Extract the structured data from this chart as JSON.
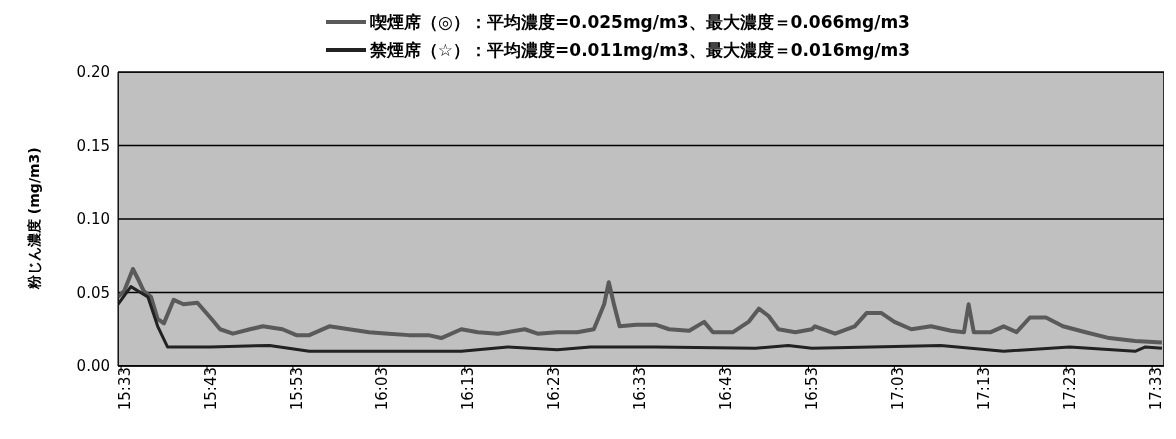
{
  "chart_data": {
    "type": "line",
    "ylabel": "粉じん濃度 (mg/m3)",
    "legend": "top",
    "grid": "y",
    "marker": "none",
    "line_style": "solid",
    "xlim": [
      15.544,
      17.573
    ],
    "ylim": [
      0,
      0.2
    ],
    "xticks": [
      {
        "value": 15.55,
        "label": "15:33"
      },
      {
        "value": 15.7167,
        "label": "15:43"
      },
      {
        "value": 15.8833,
        "label": "15:53"
      },
      {
        "value": 16.05,
        "label": "16:03"
      },
      {
        "value": 16.2167,
        "label": "16:13"
      },
      {
        "value": 16.3833,
        "label": "16:23"
      },
      {
        "value": 16.55,
        "label": "16:33"
      },
      {
        "value": 16.7167,
        "label": "16:43"
      },
      {
        "value": 16.8833,
        "label": "16:53"
      },
      {
        "value": 17.05,
        "label": "17:03"
      },
      {
        "value": 17.2167,
        "label": "17:13"
      },
      {
        "value": 17.3833,
        "label": "17:23"
      },
      {
        "value": 17.55,
        "label": "17:33"
      }
    ],
    "yticks": [
      {
        "value": 0,
        "label": "0.00"
      },
      {
        "value": 0.05,
        "label": "0.05"
      },
      {
        "value": 0.1,
        "label": "0.10"
      },
      {
        "value": 0.15,
        "label": "0.15"
      },
      {
        "value": 0.2,
        "label": "0.20"
      }
    ],
    "series": [
      {
        "name": "喫煙席（◎）：平均濃度=0.025mg/m3、最大濃度＝0.066mg/m3",
        "color": "#5a5a5a",
        "x": [
          15.544,
          15.556,
          15.573,
          15.583,
          15.594,
          15.608,
          15.621,
          15.633,
          15.652,
          15.671,
          15.698,
          15.723,
          15.742,
          15.767,
          15.8,
          15.825,
          15.863,
          15.89,
          15.915,
          15.954,
          15.992,
          16.031,
          16.069,
          16.108,
          16.146,
          16.171,
          16.21,
          16.242,
          16.281,
          16.333,
          16.358,
          16.396,
          16.435,
          16.467,
          16.487,
          16.496,
          16.506,
          16.517,
          16.55,
          16.588,
          16.613,
          16.652,
          16.681,
          16.698,
          16.737,
          16.767,
          16.787,
          16.806,
          16.825,
          16.858,
          16.89,
          16.896,
          16.935,
          16.973,
          16.996,
          17.025,
          17.05,
          17.083,
          17.121,
          17.16,
          17.185,
          17.194,
          17.204,
          17.237,
          17.262,
          17.287,
          17.313,
          17.344,
          17.377,
          17.421,
          17.467,
          17.517,
          17.569
        ],
        "values": [
          0.047,
          0.051,
          0.066,
          0.059,
          0.051,
          0.047,
          0.032,
          0.029,
          0.045,
          0.042,
          0.043,
          0.033,
          0.025,
          0.022,
          0.025,
          0.027,
          0.025,
          0.021,
          0.021,
          0.027,
          0.025,
          0.023,
          0.022,
          0.021,
          0.021,
          0.019,
          0.025,
          0.023,
          0.022,
          0.025,
          0.022,
          0.023,
          0.023,
          0.025,
          0.042,
          0.057,
          0.042,
          0.027,
          0.028,
          0.028,
          0.025,
          0.024,
          0.03,
          0.023,
          0.023,
          0.03,
          0.039,
          0.034,
          0.025,
          0.023,
          0.025,
          0.027,
          0.022,
          0.027,
          0.036,
          0.036,
          0.03,
          0.025,
          0.027,
          0.024,
          0.023,
          0.042,
          0.023,
          0.023,
          0.027,
          0.023,
          0.033,
          0.033,
          0.027,
          0.023,
          0.019,
          0.017,
          0.016
        ]
      },
      {
        "name": "禁煙席（☆）：平均濃度=0.011mg/m3、最大濃度＝0.016mg/m3",
        "color": "#222222",
        "x": [
          15.544,
          15.569,
          15.602,
          15.621,
          15.64,
          15.723,
          15.838,
          15.915,
          16.044,
          16.21,
          16.3,
          16.396,
          16.46,
          16.588,
          16.781,
          16.844,
          16.89,
          17.006,
          17.14,
          17.262,
          17.39,
          17.517,
          17.537,
          17.569
        ],
        "values": [
          0.042,
          0.054,
          0.047,
          0.027,
          0.013,
          0.013,
          0.014,
          0.01,
          0.01,
          0.01,
          0.013,
          0.011,
          0.013,
          0.013,
          0.012,
          0.014,
          0.012,
          0.013,
          0.014,
          0.01,
          0.013,
          0.01,
          0.013,
          0.012
        ]
      }
    ]
  }
}
